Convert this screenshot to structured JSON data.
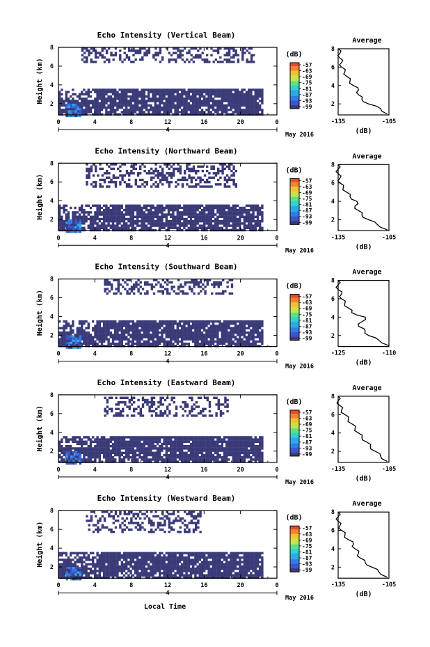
{
  "figure": {
    "xlabel": "Local Time",
    "date_label": "May 2016",
    "day_label": "4",
    "avg_title": "Average",
    "avg_xlabel": "(dB)",
    "ylabel": "Height (km)",
    "cbar_label": "(dB)"
  },
  "chart_data": [
    {
      "type": "heatmap",
      "title": "Echo Intensity (Vertical Beam)",
      "xlabel": "",
      "ylabel": "Height (km)",
      "x_ticks": [
        "0",
        "4",
        "8",
        "12",
        "16",
        "20",
        "0"
      ],
      "y_ticks": [
        "2",
        "4",
        "6",
        "8"
      ],
      "xlim": [
        0,
        24
      ],
      "ylim": [
        0.8,
        8.0
      ],
      "colorbar": {
        "label": "(dB)",
        "ticks": [
          "-57",
          "-63",
          "-69",
          "-75",
          "-81",
          "-87",
          "-93",
          "-99"
        ],
        "range": [
          -99,
          -54
        ]
      },
      "layers": [
        {
          "desc": "dense low-level echo",
          "x": [
            0,
            22.5
          ],
          "height": [
            0.8,
            3.6
          ],
          "level_db": -98
        },
        {
          "desc": "sparse upper echo",
          "x": [
            2.5,
            21.5
          ],
          "height": [
            6.5,
            8.0
          ],
          "level_db": -98
        },
        {
          "desc": "enhanced core",
          "x": [
            0.8,
            2.3
          ],
          "height": [
            0.8,
            2.0
          ],
          "level_db": -92
        }
      ],
      "average_profile": {
        "title": "Average",
        "xlabel": "(dB)",
        "xlim": [
          -135,
          -105
        ],
        "x_ticks": [
          "-135",
          "-105"
        ],
        "y_ticks": [
          "2",
          "4",
          "6",
          "8"
        ],
        "height": [
          0.9,
          1.5,
          2,
          2.5,
          3,
          3.5,
          4,
          4.5,
          5,
          5.5,
          6,
          6.5,
          7,
          7.5,
          8
        ],
        "db": [
          -106,
          -110,
          -117,
          -121,
          -123,
          -123,
          -126,
          -128,
          -130,
          -131,
          -133,
          -133,
          -134,
          -134,
          -135
        ]
      }
    },
    {
      "type": "heatmap",
      "title": "Echo Intensity (Northward Beam)",
      "xlabel": "",
      "ylabel": "Height (km)",
      "x_ticks": [
        "0",
        "4",
        "8",
        "12",
        "16",
        "20",
        "0"
      ],
      "y_ticks": [
        "2",
        "4",
        "6",
        "8"
      ],
      "xlim": [
        0,
        24
      ],
      "ylim": [
        0.8,
        8.0
      ],
      "colorbar": {
        "label": "(dB)",
        "ticks": [
          "-57",
          "-63",
          "-69",
          "-75",
          "-81",
          "-87",
          "-93",
          "-99"
        ],
        "range": [
          -99,
          -54
        ]
      },
      "layers": [
        {
          "desc": "dense low-level echo",
          "x": [
            0,
            22.5
          ],
          "height": [
            0.8,
            3.6
          ],
          "level_db": -98
        },
        {
          "desc": "sparse upper echo",
          "x": [
            3,
            19.5
          ],
          "height": [
            5.5,
            8.0
          ],
          "level_db": -98
        },
        {
          "desc": "enhanced core",
          "x": [
            0.8,
            2.3
          ],
          "height": [
            0.8,
            2.0
          ],
          "level_db": -92
        }
      ],
      "average_profile": {
        "title": "Average",
        "xlabel": "(dB)",
        "xlim": [
          -135,
          -105
        ],
        "x_ticks": [
          "-135",
          "-105"
        ],
        "y_ticks": [
          "2",
          "4",
          "6",
          "8"
        ],
        "height": [
          0.9,
          1.5,
          2,
          2.5,
          3,
          3.5,
          4,
          4.5,
          5,
          5.5,
          6,
          6.5,
          7,
          7.5,
          8
        ],
        "db": [
          -106,
          -112,
          -117,
          -121,
          -123,
          -125,
          -124,
          -128,
          -130,
          -132,
          -134,
          -134,
          -135,
          -135,
          -135
        ]
      }
    },
    {
      "type": "heatmap",
      "title": "Echo Intensity (Southward Beam)",
      "xlabel": "",
      "ylabel": "Height (km)",
      "x_ticks": [
        "0",
        "4",
        "8",
        "12",
        "16",
        "20",
        "0"
      ],
      "y_ticks": [
        "2",
        "4",
        "6",
        "8"
      ],
      "xlim": [
        0,
        24
      ],
      "ylim": [
        0.8,
        8.0
      ],
      "colorbar": {
        "label": "(dB)",
        "ticks": [
          "-57",
          "-63",
          "-69",
          "-75",
          "-81",
          "-87",
          "-93",
          "-99"
        ],
        "range": [
          -99,
          -54
        ]
      },
      "layers": [
        {
          "desc": "dense low-level echo",
          "x": [
            0,
            22.5
          ],
          "height": [
            0.8,
            3.6
          ],
          "level_db": -98
        },
        {
          "desc": "sparse upper echo",
          "x": [
            5,
            19
          ],
          "height": [
            6.5,
            8.0
          ],
          "level_db": -98
        },
        {
          "desc": "enhanced core",
          "x": [
            0.8,
            2.3
          ],
          "height": [
            0.8,
            2.0
          ],
          "level_db": -92
        }
      ],
      "average_profile": {
        "title": "Average",
        "xlabel": "(dB)",
        "xlim": [
          -125,
          -110
        ],
        "x_ticks": [
          "-125",
          "-110"
        ],
        "y_ticks": [
          "2",
          "4",
          "6",
          "8"
        ],
        "height": [
          0.9,
          1.5,
          2,
          2.5,
          3,
          3.5,
          4,
          4.5,
          5,
          5.5,
          6,
          6.5,
          7,
          7.5,
          8
        ],
        "db": [
          -110,
          -113,
          -116,
          -117,
          -119,
          -118,
          -117,
          -121,
          -122,
          -123,
          -124,
          -124,
          -125,
          -125,
          -125
        ]
      }
    },
    {
      "type": "heatmap",
      "title": "Echo Intensity (Eastward Beam)",
      "xlabel": "",
      "ylabel": "Height (km)",
      "x_ticks": [
        "0",
        "4",
        "8",
        "12",
        "16",
        "20",
        "0"
      ],
      "y_ticks": [
        "2",
        "4",
        "6",
        "8"
      ],
      "xlim": [
        0,
        24
      ],
      "ylim": [
        0.8,
        8.0
      ],
      "colorbar": {
        "label": "(dB)",
        "ticks": [
          "-57",
          "-63",
          "-69",
          "-75",
          "-81",
          "-87",
          "-93",
          "-99"
        ],
        "range": [
          -99,
          -54
        ]
      },
      "layers": [
        {
          "desc": "dense low-level echo",
          "x": [
            0,
            22.5
          ],
          "height": [
            0.8,
            3.6
          ],
          "level_db": -98
        },
        {
          "desc": "sparse upper echo",
          "x": [
            5,
            18.5
          ],
          "height": [
            5.8,
            7.8
          ],
          "level_db": -98
        },
        {
          "desc": "enhanced core",
          "x": [
            0.8,
            2.3
          ],
          "height": [
            0.8,
            2.0
          ],
          "level_db": -92
        }
      ],
      "average_profile": {
        "title": "Average",
        "xlabel": "(dB)",
        "xlim": [
          -135,
          -105
        ],
        "x_ticks": [
          "-135",
          "-105"
        ],
        "y_ticks": [
          "2",
          "4",
          "6",
          "8"
        ],
        "height": [
          0.9,
          1.5,
          2,
          2.5,
          3,
          3.5,
          4,
          4.5,
          5,
          5.5,
          6,
          6.5,
          7,
          7.5,
          8
        ],
        "db": [
          -106,
          -110,
          -113,
          -116,
          -118,
          -121,
          -123,
          -125,
          -127,
          -129,
          -131,
          -133,
          -134,
          -135,
          -135
        ]
      }
    },
    {
      "type": "heatmap",
      "title": "Echo Intensity (Westward Beam)",
      "xlabel": "Local Time",
      "ylabel": "Height (km)",
      "x_ticks": [
        "0",
        "4",
        "8",
        "12",
        "16",
        "20",
        "0"
      ],
      "y_ticks": [
        "2",
        "4",
        "6",
        "8"
      ],
      "xlim": [
        0,
        24
      ],
      "ylim": [
        0.8,
        8.0
      ],
      "colorbar": {
        "label": "(dB)",
        "ticks": [
          "-57",
          "-63",
          "-69",
          "-75",
          "-81",
          "-87",
          "-93",
          "-99"
        ],
        "range": [
          -99,
          -54
        ]
      },
      "layers": [
        {
          "desc": "dense low-level echo",
          "x": [
            0,
            22.5
          ],
          "height": [
            0.8,
            3.6
          ],
          "level_db": -98
        },
        {
          "desc": "sparse upper echo",
          "x": [
            3,
            15.5
          ],
          "height": [
            5.8,
            8.0
          ],
          "level_db": -98
        },
        {
          "desc": "enhanced core",
          "x": [
            0.8,
            2.3
          ],
          "height": [
            0.8,
            2.0
          ],
          "level_db": -92
        }
      ],
      "average_profile": {
        "title": "Average",
        "xlabel": "(dB)",
        "xlim": [
          -135,
          -105
        ],
        "x_ticks": [
          "-135",
          "-105"
        ],
        "y_ticks": [
          "2",
          "4",
          "6",
          "8"
        ],
        "height": [
          0.9,
          1.5,
          2,
          2.5,
          3,
          3.5,
          4,
          4.5,
          5,
          5.5,
          6,
          6.5,
          7,
          7.5,
          8
        ],
        "db": [
          -106,
          -111,
          -115,
          -119,
          -122,
          -123,
          -125,
          -126,
          -129,
          -131,
          -133,
          -134,
          -135,
          -135,
          -135
        ]
      }
    }
  ]
}
